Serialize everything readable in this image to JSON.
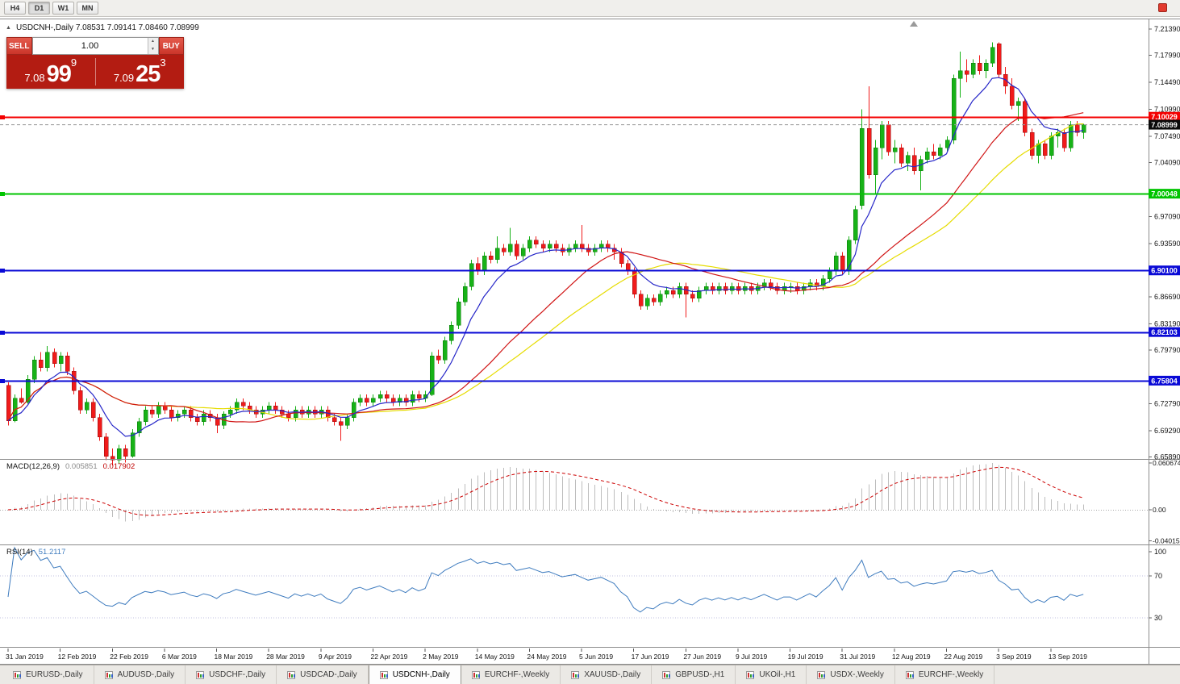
{
  "toolbar": {
    "timeframes": [
      {
        "label": "H4",
        "active": false
      },
      {
        "label": "D1",
        "active": true
      },
      {
        "label": "W1",
        "active": false
      },
      {
        "label": "MN",
        "active": false
      }
    ]
  },
  "chart_header": {
    "collapse_icon": "▲",
    "title": "USDCNH-,Daily 7.08531 7.09141 7.08460 7.08999"
  },
  "trade_panel": {
    "sell_label": "SELL",
    "buy_label": "BUY",
    "volume": "1.00",
    "sell_price": {
      "big": "7.08",
      "large": "99",
      "sup": "9"
    },
    "buy_price": {
      "big": "7.09",
      "large": "25",
      "sup": "3"
    }
  },
  "macd_panel": {
    "label": "MACD(12,26,9)",
    "value_main": "0.005851",
    "value_signal": "0.017902",
    "axis_labels": [
      "0.060674",
      "0.00",
      "-0.040152"
    ]
  },
  "rsi_panel": {
    "label": "RSI(14)",
    "value": "51.2117",
    "axis_labels": [
      "100",
      "70",
      "30"
    ],
    "levels": [
      70,
      30
    ]
  },
  "price_axis": {
    "labels": [
      "7.21390",
      "7.17990",
      "7.14490",
      "7.10990",
      "7.07490",
      "7.04090",
      "7.00590",
      "6.97090",
      "6.93590",
      "6.90090",
      "6.86690",
      "6.83190",
      "6.79790",
      "6.76290",
      "6.72790",
      "6.69290",
      "6.65890"
    ]
  },
  "date_axis": {
    "step": 8,
    "labels": [
      "31 Jan 2019",
      "12 Feb 2019",
      "22 Feb 2019",
      "6 Mar 2019",
      "18 Mar 2019",
      "28 Mar 2019",
      "9 Apr 2019",
      "22 Apr 2019",
      "2 May 2019",
      "14 May 2019",
      "24 May 2019",
      "5 Jun 2019",
      "17 Jun 2019",
      "27 Jun 2019",
      "9 Jul 2019",
      "19 Jul 2019",
      "31 Jul 2019",
      "12 Aug 2019",
      "22 Aug 2019",
      "3 Sep 2019",
      "13 Sep 2019"
    ]
  },
  "chart_data": {
    "type": "candlestick",
    "symbol": "USDCNH-",
    "timeframe": "Daily",
    "ohlc_display": {
      "open": "7.08531",
      "high": "7.09141",
      "low": "7.08460",
      "close": "7.08999"
    },
    "y_range": {
      "min": 6.6575,
      "max": 7.2245
    },
    "colors": {
      "bull": "#17b217",
      "bear": "#f01b1b",
      "bull_edge": "#077407",
      "bear_edge": "#8f0b0b"
    },
    "hlines": [
      {
        "price": 7.10029,
        "label": "7.10029",
        "color": "#f40000",
        "width": 2
      },
      {
        "price": 7.00048,
        "label": "7.00048",
        "color": "#00c400",
        "width": 2
      },
      {
        "price": 6.901,
        "label": "6.90100",
        "color": "#0a0ad6",
        "width": 2
      },
      {
        "price": 6.82103,
        "label": "6.82103",
        "color": "#0a0ad6",
        "width": 2
      },
      {
        "price": 6.75804,
        "label": "6.75804",
        "color": "#0a0ad6",
        "width": 2
      }
    ],
    "current_price": {
      "price": 7.08999,
      "label": "7.08999",
      "badge_color": "#0a0a0a"
    },
    "moving_averages": [
      {
        "period": 34,
        "type": "sma",
        "color": "#e6dc00"
      },
      {
        "period": 25,
        "type": "sma",
        "color": "#d01414"
      },
      {
        "period": 8,
        "type": "ema",
        "color": "#2626c8"
      }
    ],
    "indicators": {
      "macd": {
        "fast": 12,
        "slow": 26,
        "signal": 9
      },
      "rsi": {
        "period": 14
      }
    },
    "candles": [
      [
        6.752,
        6.756,
        6.7,
        6.706
      ],
      [
        6.706,
        6.74,
        6.704,
        6.735
      ],
      [
        6.735,
        6.748,
        6.728,
        6.73
      ],
      [
        6.73,
        6.765,
        6.728,
        6.76
      ],
      [
        6.76,
        6.79,
        6.755,
        6.785
      ],
      [
        6.785,
        6.795,
        6.77,
        6.775
      ],
      [
        6.775,
        6.803,
        6.77,
        6.795
      ],
      [
        6.795,
        6.8,
        6.775,
        6.78
      ],
      [
        6.78,
        6.795,
        6.77,
        6.79
      ],
      [
        6.79,
        6.795,
        6.765,
        6.77
      ],
      [
        6.77,
        6.775,
        6.74,
        6.745
      ],
      [
        6.745,
        6.75,
        6.715,
        6.72
      ],
      [
        6.72,
        6.735,
        6.715,
        6.73
      ],
      [
        6.73,
        6.735,
        6.705,
        6.71
      ],
      [
        6.71,
        6.715,
        6.68,
        6.685
      ],
      [
        6.685,
        6.69,
        6.655,
        6.66
      ],
      [
        6.66,
        6.67,
        6.648,
        6.655
      ],
      [
        6.655,
        6.675,
        6.65,
        6.67
      ],
      [
        6.67,
        6.675,
        6.652,
        6.66
      ],
      [
        6.66,
        6.695,
        6.658,
        6.69
      ],
      [
        6.69,
        6.71,
        6.685,
        6.705
      ],
      [
        6.705,
        6.725,
        6.7,
        6.72
      ],
      [
        6.72,
        6.725,
        6.71,
        6.715
      ],
      [
        6.715,
        6.73,
        6.71,
        6.725
      ],
      [
        6.725,
        6.73,
        6.715,
        6.72
      ],
      [
        6.72,
        6.725,
        6.705,
        6.71
      ],
      [
        6.71,
        6.72,
        6.705,
        6.715
      ],
      [
        6.715,
        6.725,
        6.71,
        6.72
      ],
      [
        6.72,
        6.725,
        6.705,
        6.71
      ],
      [
        6.71,
        6.715,
        6.7,
        6.705
      ],
      [
        6.705,
        6.72,
        6.7,
        6.715
      ],
      [
        6.715,
        6.72,
        6.705,
        6.71
      ],
      [
        6.71,
        6.715,
        6.69,
        6.7
      ],
      [
        6.7,
        6.718,
        6.695,
        6.715
      ],
      [
        6.715,
        6.725,
        6.71,
        6.72
      ],
      [
        6.72,
        6.735,
        6.715,
        6.73
      ],
      [
        6.73,
        6.735,
        6.72,
        6.725
      ],
      [
        6.725,
        6.73,
        6.715,
        6.72
      ],
      [
        6.72,
        6.725,
        6.71,
        6.715
      ],
      [
        6.715,
        6.725,
        6.71,
        6.72
      ],
      [
        6.72,
        6.73,
        6.715,
        6.725
      ],
      [
        6.725,
        6.73,
        6.715,
        6.72
      ],
      [
        6.72,
        6.725,
        6.71,
        6.715
      ],
      [
        6.715,
        6.72,
        6.705,
        6.71
      ],
      [
        6.71,
        6.725,
        6.705,
        6.72
      ],
      [
        6.72,
        6.725,
        6.71,
        6.715
      ],
      [
        6.715,
        6.725,
        6.71,
        6.72
      ],
      [
        6.72,
        6.725,
        6.71,
        6.715
      ],
      [
        6.715,
        6.725,
        6.71,
        6.72
      ],
      [
        6.72,
        6.725,
        6.705,
        6.71
      ],
      [
        6.71,
        6.715,
        6.7,
        6.705
      ],
      [
        6.705,
        6.71,
        6.68,
        6.7
      ],
      [
        6.7,
        6.715,
        6.695,
        6.71
      ],
      [
        6.71,
        6.735,
        6.705,
        6.73
      ],
      [
        6.73,
        6.74,
        6.725,
        6.735
      ],
      [
        6.735,
        6.74,
        6.725,
        6.73
      ],
      [
        6.73,
        6.74,
        6.725,
        6.735
      ],
      [
        6.735,
        6.745,
        6.73,
        6.74
      ],
      [
        6.74,
        6.745,
        6.73,
        6.735
      ],
      [
        6.735,
        6.74,
        6.725,
        6.73
      ],
      [
        6.73,
        6.74,
        6.725,
        6.735
      ],
      [
        6.735,
        6.74,
        6.725,
        6.73
      ],
      [
        6.73,
        6.745,
        6.725,
        6.74
      ],
      [
        6.74,
        6.745,
        6.73,
        6.735
      ],
      [
        6.735,
        6.745,
        6.73,
        6.74
      ],
      [
        6.74,
        6.795,
        6.738,
        6.79
      ],
      [
        6.79,
        6.798,
        6.78,
        6.785
      ],
      [
        6.785,
        6.815,
        6.78,
        6.81
      ],
      [
        6.81,
        6.835,
        6.805,
        6.83
      ],
      [
        6.83,
        6.865,
        6.825,
        6.86
      ],
      [
        6.86,
        6.885,
        6.855,
        6.88
      ],
      [
        6.88,
        6.915,
        6.875,
        6.91
      ],
      [
        6.91,
        6.918,
        6.895,
        6.9
      ],
      [
        6.9,
        6.925,
        6.895,
        6.92
      ],
      [
        6.92,
        6.926,
        6.91,
        6.915
      ],
      [
        6.915,
        6.945,
        6.91,
        6.93
      ],
      [
        6.93,
        6.935,
        6.92,
        6.925
      ],
      [
        6.925,
        6.956,
        6.92,
        6.935
      ],
      [
        6.935,
        6.94,
        6.915,
        6.92
      ],
      [
        6.92,
        6.935,
        6.915,
        6.93
      ],
      [
        6.93,
        6.945,
        6.925,
        6.94
      ],
      [
        6.94,
        6.945,
        6.93,
        6.935
      ],
      [
        6.935,
        6.94,
        6.925,
        6.93
      ],
      [
        6.93,
        6.94,
        6.925,
        6.935
      ],
      [
        6.935,
        6.94,
        6.925,
        6.93
      ],
      [
        6.93,
        6.935,
        6.92,
        6.925
      ],
      [
        6.925,
        6.935,
        6.92,
        6.93
      ],
      [
        6.93,
        6.94,
        6.925,
        6.935
      ],
      [
        6.935,
        6.96,
        6.925,
        6.93
      ],
      [
        6.93,
        6.935,
        6.92,
        6.925
      ],
      [
        6.925,
        6.935,
        6.92,
        6.93
      ],
      [
        6.93,
        6.94,
        6.925,
        6.935
      ],
      [
        6.935,
        6.94,
        6.925,
        6.93
      ],
      [
        6.93,
        6.935,
        6.915,
        6.925
      ],
      [
        6.925,
        6.93,
        6.905,
        6.91
      ],
      [
        6.91,
        6.915,
        6.895,
        6.9
      ],
      [
        6.9,
        6.905,
        6.865,
        6.87
      ],
      [
        6.87,
        6.875,
        6.85,
        6.855
      ],
      [
        6.855,
        6.87,
        6.85,
        6.865
      ],
      [
        6.865,
        6.87,
        6.855,
        6.86
      ],
      [
        6.86,
        6.875,
        6.855,
        6.87
      ],
      [
        6.87,
        6.88,
        6.865,
        6.875
      ],
      [
        6.875,
        6.88,
        6.865,
        6.87
      ],
      [
        6.87,
        6.885,
        6.865,
        6.88
      ],
      [
        6.88,
        6.885,
        6.84,
        6.87
      ],
      [
        6.87,
        6.875,
        6.86,
        6.865
      ],
      [
        6.865,
        6.88,
        6.86,
        6.875
      ],
      [
        6.875,
        6.885,
        6.87,
        6.88
      ],
      [
        6.88,
        6.885,
        6.87,
        6.875
      ],
      [
        6.875,
        6.885,
        6.87,
        6.88
      ],
      [
        6.88,
        6.885,
        6.87,
        6.875
      ],
      [
        6.875,
        6.885,
        6.87,
        6.88
      ],
      [
        6.88,
        6.885,
        6.87,
        6.875
      ],
      [
        6.875,
        6.885,
        6.87,
        6.88
      ],
      [
        6.88,
        6.885,
        6.87,
        6.875
      ],
      [
        6.875,
        6.885,
        6.87,
        6.88
      ],
      [
        6.88,
        6.89,
        6.875,
        6.885
      ],
      [
        6.885,
        6.89,
        6.875,
        6.88
      ],
      [
        6.88,
        6.885,
        6.87,
        6.875
      ],
      [
        6.875,
        6.885,
        6.87,
        6.88
      ],
      [
        6.88,
        6.885,
        6.872,
        6.88
      ],
      [
        6.88,
        6.885,
        6.87,
        6.875
      ],
      [
        6.875,
        6.885,
        6.87,
        6.88
      ],
      [
        6.88,
        6.89,
        6.875,
        6.885
      ],
      [
        6.885,
        6.89,
        6.875,
        6.88
      ],
      [
        6.88,
        6.895,
        6.875,
        6.89
      ],
      [
        6.89,
        6.905,
        6.885,
        6.9
      ],
      [
        6.9,
        6.925,
        6.895,
        6.92
      ],
      [
        6.92,
        6.925,
        6.895,
        6.9
      ],
      [
        6.9,
        6.945,
        6.895,
        6.94
      ],
      [
        6.94,
        6.985,
        6.935,
        6.98
      ],
      [
        6.985,
        7.11,
        6.98,
        7.085
      ],
      [
        7.085,
        7.14,
        7.02,
        7.025
      ],
      [
        7.025,
        7.07,
        7.0,
        7.06
      ],
      [
        7.06,
        7.095,
        7.045,
        7.09
      ],
      [
        7.09,
        7.095,
        7.05,
        7.055
      ],
      [
        7.055,
        7.07,
        7.04,
        7.06
      ],
      [
        7.06,
        7.065,
        7.035,
        7.04
      ],
      [
        7.04,
        7.055,
        7.03,
        7.05
      ],
      [
        7.05,
        7.06,
        7.025,
        7.03
      ],
      [
        7.03,
        7.05,
        7.005,
        7.045
      ],
      [
        7.045,
        7.06,
        7.04,
        7.055
      ],
      [
        7.055,
        7.065,
        7.045,
        7.05
      ],
      [
        7.05,
        7.065,
        7.045,
        7.06
      ],
      [
        7.06,
        7.075,
        7.055,
        7.07
      ],
      [
        7.07,
        7.155,
        7.065,
        7.15
      ],
      [
        7.15,
        7.185,
        7.125,
        7.16
      ],
      [
        7.16,
        7.175,
        7.145,
        7.155
      ],
      [
        7.155,
        7.175,
        7.15,
        7.17
      ],
      [
        7.17,
        7.18,
        7.155,
        7.16
      ],
      [
        7.16,
        7.175,
        7.15,
        7.17
      ],
      [
        7.17,
        7.197,
        7.165,
        7.19
      ],
      [
        7.195,
        7.197,
        7.15,
        7.155
      ],
      [
        7.155,
        7.165,
        7.13,
        7.14
      ],
      [
        7.14,
        7.15,
        7.11,
        7.115
      ],
      [
        7.115,
        7.125,
        7.095,
        7.12
      ],
      [
        7.12,
        7.125,
        7.075,
        7.08
      ],
      [
        7.08,
        7.085,
        7.045,
        7.05
      ],
      [
        7.05,
        7.07,
        7.04,
        7.065
      ],
      [
        7.065,
        7.07,
        7.045,
        7.05
      ],
      [
        7.05,
        7.08,
        7.045,
        7.075
      ],
      [
        7.075,
        7.085,
        7.06,
        7.08
      ],
      [
        7.08,
        7.085,
        7.055,
        7.06
      ],
      [
        7.06,
        7.095,
        7.055,
        7.09
      ],
      [
        7.09,
        7.095,
        7.075,
        7.08
      ],
      [
        7.08,
        7.091,
        7.072,
        7.09
      ]
    ]
  },
  "bottom_tabs": {
    "tabs": [
      {
        "label": "EURUSD-,Daily",
        "active": false
      },
      {
        "label": "AUDUSD-,Daily",
        "active": false
      },
      {
        "label": "USDCHF-,Daily",
        "active": false
      },
      {
        "label": "USDCAD-,Daily",
        "active": false
      },
      {
        "label": "USDCNH-,Daily",
        "active": true
      },
      {
        "label": "EURCHF-,Weekly",
        "active": false
      },
      {
        "label": "XAUUSD-,Daily",
        "active": false
      },
      {
        "label": "GBPUSD-,H1",
        "active": false
      },
      {
        "label": "UKOil-,H1",
        "active": false
      },
      {
        "label": "USDX-,Weekly",
        "active": false
      },
      {
        "label": "EURCHF-,Weekly",
        "active": false
      }
    ]
  }
}
